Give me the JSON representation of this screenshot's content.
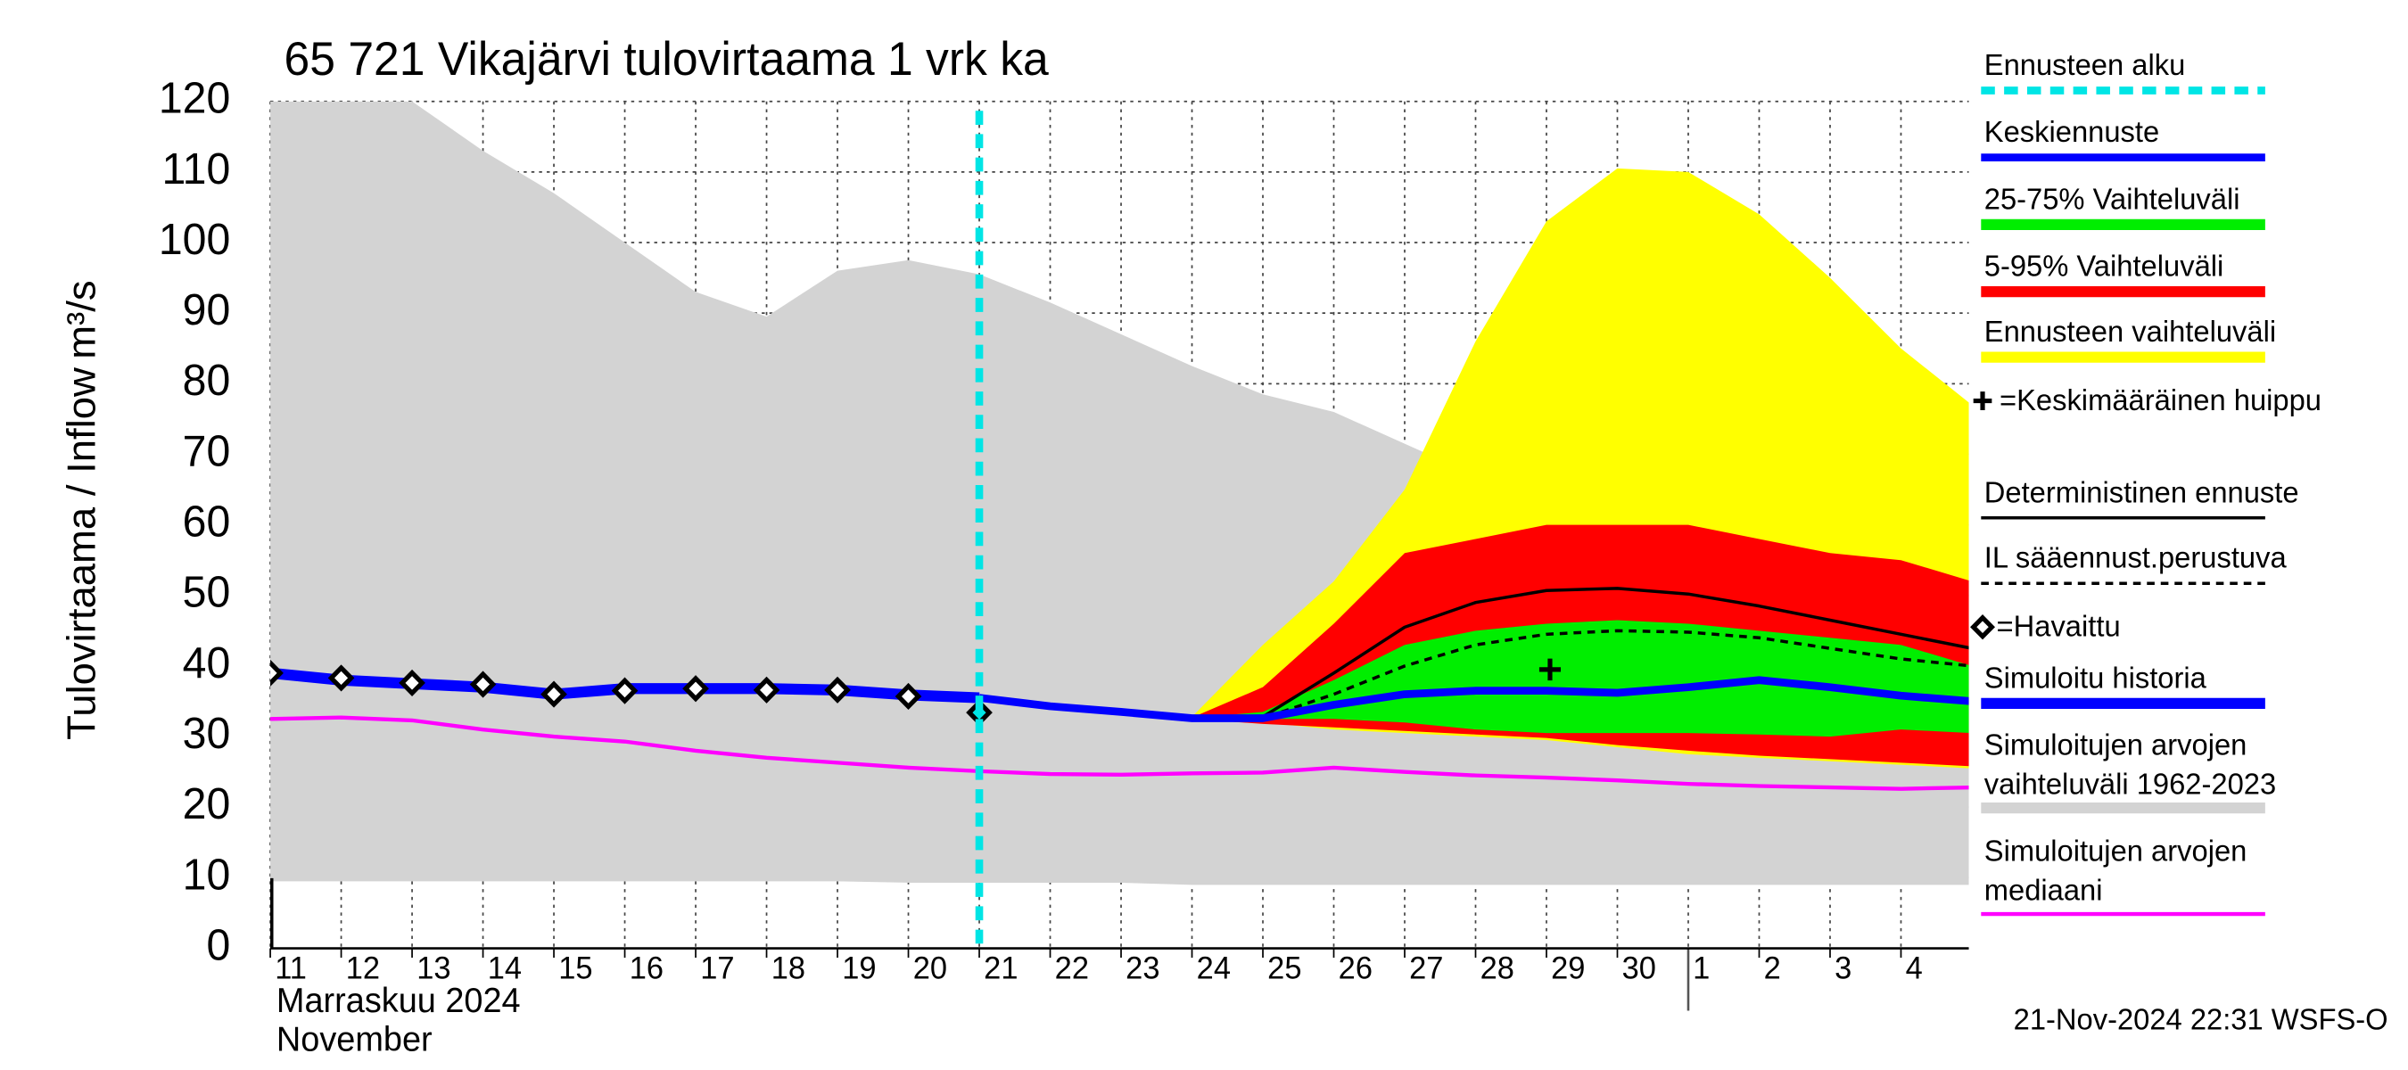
{
  "chart_data": {
    "type": "line",
    "title": "65 721 Vikajärvi tulovirtaama 1 vrk ka",
    "ylabel": "Tulovirtaama / Inflow",
    "yunit": "m³/s",
    "xlabel_fi": "Marraskuu 2024",
    "xlabel_en": "November",
    "footer": "21-Nov-2024 22:31 WSFS-O",
    "grid": true,
    "legend": "right",
    "x": [
      0,
      1,
      2,
      3,
      4,
      5,
      6,
      7,
      8,
      9,
      10,
      11,
      12,
      13,
      14,
      15,
      16,
      17,
      18,
      19,
      20,
      21,
      22,
      23,
      24
    ],
    "xlim": [
      0,
      24
    ],
    "xticks": [
      {
        "value": 0,
        "label": "11"
      },
      {
        "value": 1,
        "label": "12"
      },
      {
        "value": 2,
        "label": "13"
      },
      {
        "value": 3,
        "label": "14"
      },
      {
        "value": 4,
        "label": "15"
      },
      {
        "value": 5,
        "label": "16"
      },
      {
        "value": 6,
        "label": "17"
      },
      {
        "value": 7,
        "label": "18"
      },
      {
        "value": 8,
        "label": "19"
      },
      {
        "value": 9,
        "label": "20"
      },
      {
        "value": 10,
        "label": "21"
      },
      {
        "value": 11,
        "label": "22"
      },
      {
        "value": 12,
        "label": "23"
      },
      {
        "value": 13,
        "label": "24"
      },
      {
        "value": 14,
        "label": "25"
      },
      {
        "value": 15,
        "label": "26"
      },
      {
        "value": 16,
        "label": "27"
      },
      {
        "value": 17,
        "label": "28"
      },
      {
        "value": 18,
        "label": "29"
      },
      {
        "value": 19,
        "label": "30"
      },
      {
        "value": 20,
        "label": "1"
      },
      {
        "value": 21,
        "label": "2"
      },
      {
        "value": 22,
        "label": "3"
      },
      {
        "value": 23,
        "label": "4"
      }
    ],
    "ylim": [
      0,
      120
    ],
    "yticks": [
      0,
      10,
      20,
      30,
      40,
      50,
      60,
      70,
      80,
      90,
      100,
      110,
      120
    ],
    "series": [
      {
        "name": "Ennusteen alku",
        "color": "#00e5e5",
        "x": 10
      },
      {
        "name": "Keskiennuste",
        "color": "#0000ff",
        "width": 5,
        "values": [
          null,
          null,
          null,
          null,
          null,
          null,
          null,
          null,
          null,
          null,
          35.5,
          34.3,
          33.5,
          32.6,
          32.6,
          34.5,
          36,
          36.5,
          36.5,
          36.2,
          37,
          38,
          37,
          35.8,
          35
        ]
      },
      {
        "name": "25-75% Vaihteluväli",
        "color": "#00ee00",
        "upper": [
          null,
          null,
          null,
          null,
          null,
          null,
          null,
          null,
          null,
          null,
          35.5,
          34.4,
          33.5,
          32.6,
          33.5,
          38,
          43,
          45,
          46,
          46.5,
          46,
          45,
          44,
          43,
          40
        ],
        "lower": [
          null,
          null,
          null,
          null,
          null,
          null,
          null,
          null,
          null,
          null,
          35.5,
          34.3,
          33.4,
          32.5,
          32.5,
          32.5,
          32,
          31,
          30.5,
          30.5,
          30.5,
          30.3,
          30,
          31,
          30.5
        ]
      },
      {
        "name": "5-95% Vaihteluväli",
        "color": "#ff0000",
        "upper": [
          null,
          null,
          null,
          null,
          null,
          null,
          null,
          null,
          null,
          null,
          35.5,
          34.5,
          33.6,
          32.7,
          37,
          46,
          56,
          58,
          60,
          60,
          60,
          58,
          56,
          55,
          52
        ],
        "lower": [
          null,
          null,
          null,
          null,
          null,
          null,
          null,
          null,
          null,
          null,
          35.5,
          34.2,
          33.4,
          32.5,
          31.8,
          31.3,
          30.8,
          30.3,
          29.8,
          28.8,
          28,
          27.3,
          26.8,
          26.3,
          25.8
        ]
      },
      {
        "name": "Ennusteen vaihteluväli",
        "color": "#ffff00",
        "upper": [
          null,
          null,
          null,
          null,
          null,
          null,
          null,
          null,
          null,
          null,
          35.5,
          34.5,
          33.8,
          32.8,
          43,
          52,
          65,
          86,
          103,
          110.5,
          110,
          104,
          95,
          85,
          77
        ],
        "lower": [
          null,
          null,
          null,
          null,
          null,
          null,
          null,
          null,
          null,
          null,
          35.5,
          34.2,
          33.3,
          32.5,
          32,
          31,
          30.5,
          30,
          29.5,
          28.5,
          27.5,
          27,
          26.5,
          26,
          25.5
        ]
      },
      {
        "name": "=Keskimääräinen huippu",
        "color": "#000000",
        "x": 18.05,
        "y": 39.5
      },
      {
        "name": "Deterministinen ennuste",
        "color": "#000000",
        "width": 2,
        "values": [
          null,
          null,
          null,
          null,
          null,
          null,
          null,
          null,
          null,
          null,
          35.5,
          34.3,
          33.5,
          32.6,
          32.8,
          39,
          45.5,
          49,
          50.7,
          51,
          50.2,
          48.5,
          46.5,
          44.5,
          42.5
        ]
      },
      {
        "name": "IL sääennust.perustuva",
        "color": "#000000",
        "width": 2,
        "dash": true,
        "values": [
          null,
          null,
          null,
          null,
          null,
          null,
          null,
          null,
          null,
          null,
          35.5,
          34.3,
          33.5,
          32.6,
          32.6,
          36,
          40,
          43,
          44.5,
          45,
          44.8,
          44,
          42.5,
          41,
          40
        ]
      },
      {
        "name": "=Havaittu",
        "color": "#000000",
        "marker": "diamond",
        "values": [
          39,
          38.3,
          37.6,
          37.4,
          36,
          36.5,
          36.8,
          36.6,
          36.6,
          35.7,
          33.4,
          null,
          null,
          null,
          null,
          null,
          null,
          null,
          null,
          null,
          null,
          null,
          null,
          null,
          null
        ]
      },
      {
        "name": "Simuloitu historia",
        "color": "#0000ff",
        "width": 7,
        "values": [
          39,
          38,
          37.5,
          37,
          36,
          36.8,
          36.8,
          36.8,
          36.6,
          35.9,
          35.5,
          null,
          null,
          null,
          null,
          null,
          null,
          null,
          null,
          null,
          null,
          null,
          null,
          null,
          null
        ]
      },
      {
        "name": "Simuloitujen arvojen vaihteluväli 1962-2023",
        "color": "#d3d3d3",
        "upper": [
          120,
          120,
          120,
          113,
          107,
          100,
          93,
          89.5,
          96,
          97.5,
          95.5,
          91.5,
          87,
          82.5,
          78.5,
          76,
          71.5,
          67,
          64,
          61,
          59,
          56,
          54,
          52.5,
          51.5
        ],
        "lower": [
          9.5,
          9.5,
          9.5,
          9.5,
          9.5,
          9.5,
          9.5,
          9.5,
          9.5,
          9.3,
          9.3,
          9.3,
          9.3,
          9,
          9,
          9,
          9,
          9,
          9,
          9,
          9,
          9,
          9,
          9,
          9
        ]
      },
      {
        "name": "Simuloitujen arvojen mediaani",
        "color": "#ff00ff",
        "width": 2.5,
        "values": [
          32.5,
          32.7,
          32.3,
          31,
          30,
          29.3,
          28,
          27,
          26.3,
          25.6,
          25.1,
          24.7,
          24.6,
          24.8,
          24.9,
          25.6,
          25,
          24.5,
          24.2,
          23.8,
          23.3,
          23,
          22.8,
          22.6,
          22.8
        ]
      }
    ]
  }
}
